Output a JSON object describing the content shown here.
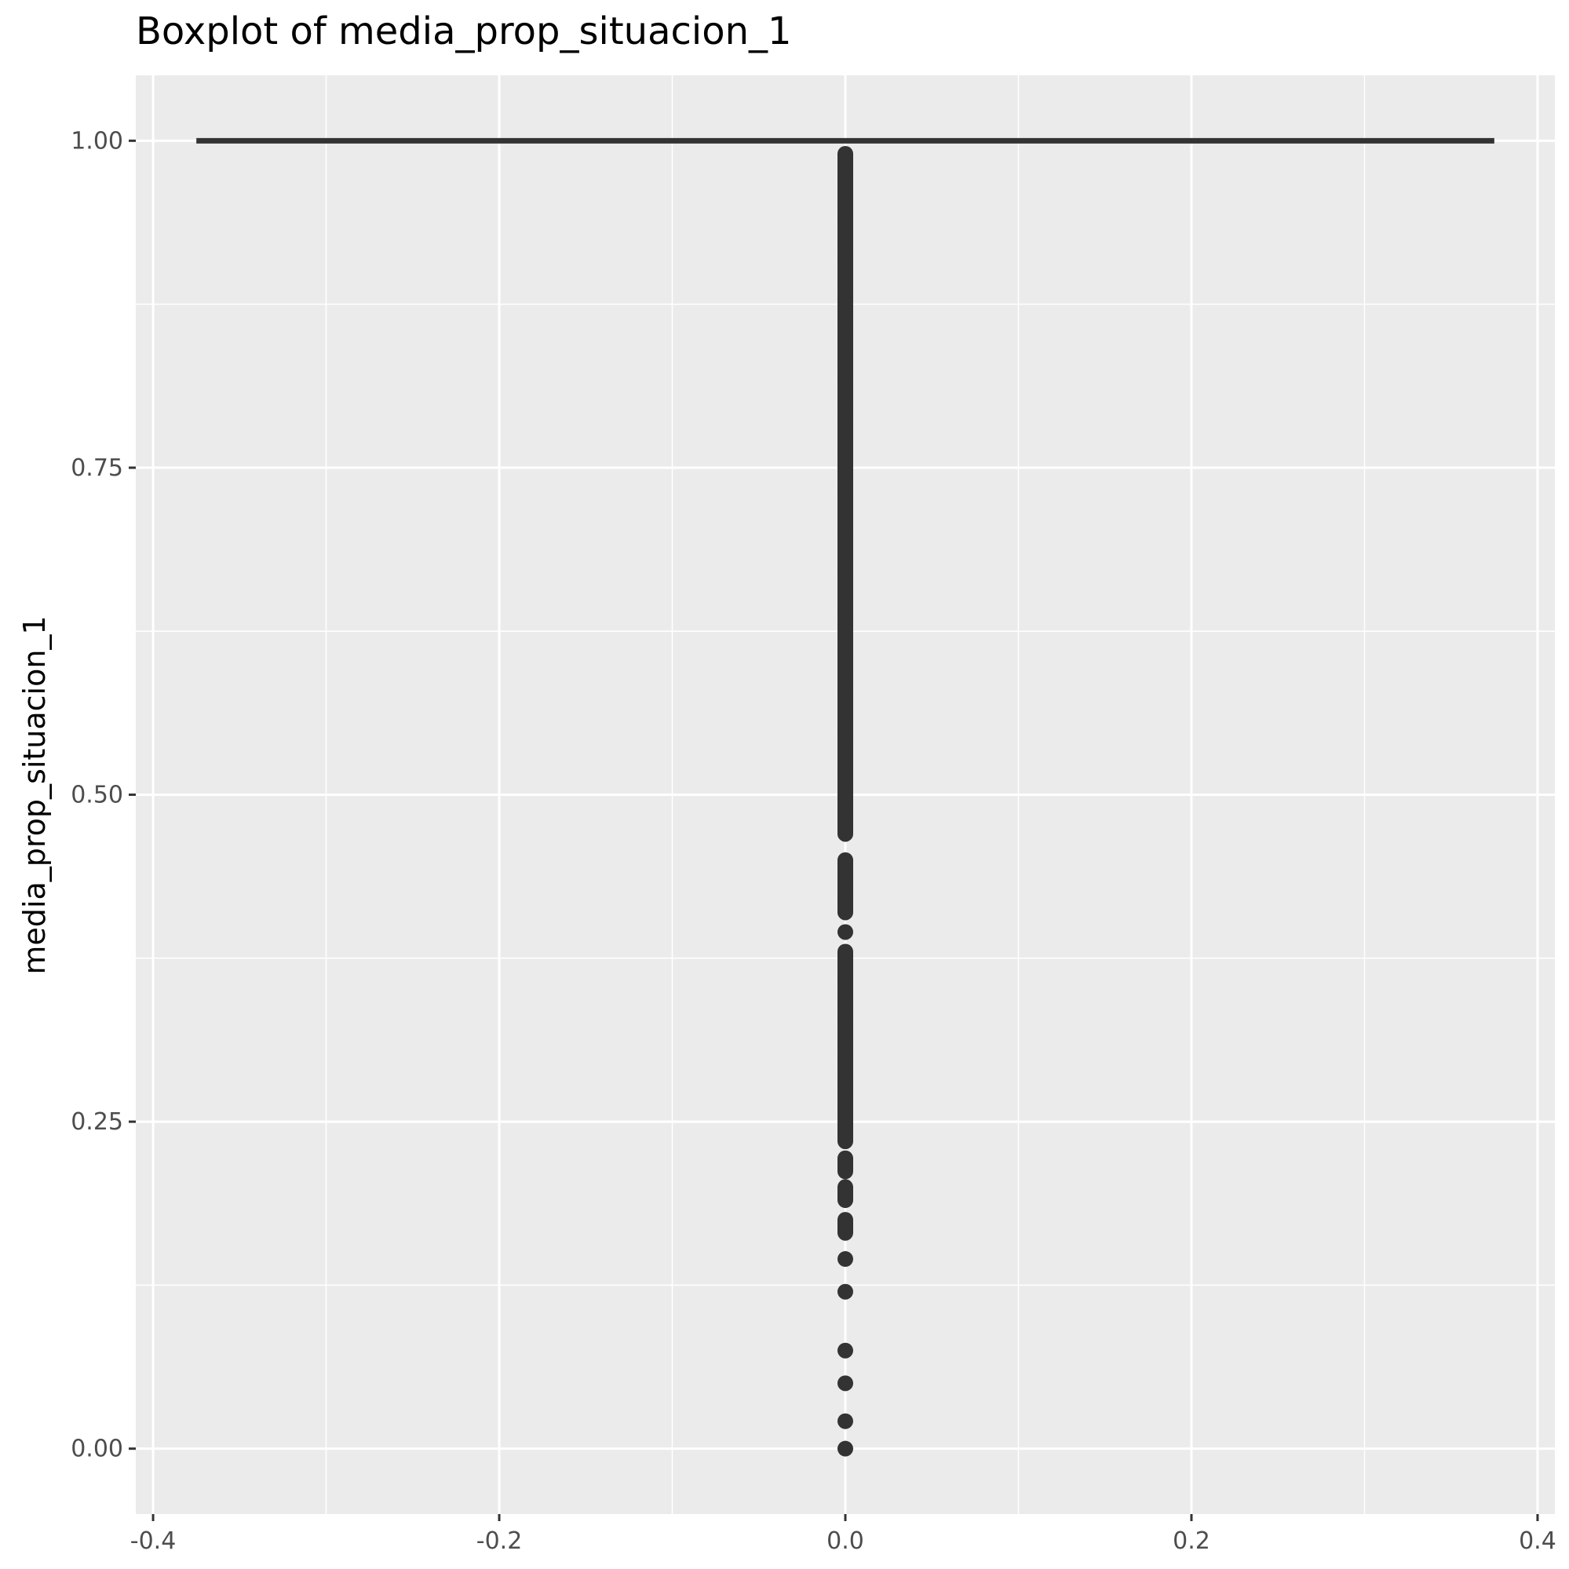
{
  "chart_data": {
    "type": "boxplot",
    "title": "Boxplot of media_prop_situacion_1",
    "xlabel": "",
    "ylabel": "media_prop_situacion_1",
    "xlim": [
      -0.41,
      0.41
    ],
    "ylim": [
      -0.05,
      1.05
    ],
    "x_ticks": [
      {
        "value": -0.4,
        "label": "-0.4"
      },
      {
        "value": -0.2,
        "label": "-0.2"
      },
      {
        "value": 0.0,
        "label": "0.0"
      },
      {
        "value": 0.2,
        "label": "0.2"
      },
      {
        "value": 0.4,
        "label": "0.4"
      }
    ],
    "y_ticks": [
      {
        "value": 0.0,
        "label": "0.00"
      },
      {
        "value": 0.25,
        "label": "0.25"
      },
      {
        "value": 0.5,
        "label": "0.50"
      },
      {
        "value": 0.75,
        "label": "0.75"
      },
      {
        "value": 1.0,
        "label": "1.00"
      }
    ],
    "grid": true,
    "box": {
      "x": 0.0,
      "xmin": -0.375,
      "xmax": 0.375,
      "lower_whisker": 1.0,
      "q1": 1.0,
      "median": 1.0,
      "q3": 1.0,
      "upper_whisker": 1.0
    },
    "outliers": [
      0.0,
      0.021,
      0.05,
      0.075,
      0.12,
      0.145,
      0.165,
      0.17,
      0.175,
      0.19,
      0.195,
      0.2,
      0.212,
      0.222,
      0.235,
      0.24,
      0.25,
      0.26,
      0.27,
      0.28,
      0.29,
      0.3,
      0.31,
      0.32,
      0.33,
      0.34,
      0.35,
      0.36,
      0.37,
      0.38,
      0.395,
      0.41,
      0.42,
      0.43,
      0.44,
      0.45,
      0.47,
      0.48,
      0.49,
      0.5,
      0.51,
      0.52,
      0.53,
      0.54,
      0.55,
      0.56,
      0.57,
      0.58,
      0.59,
      0.6,
      0.61,
      0.62,
      0.63,
      0.64,
      0.65,
      0.66,
      0.67,
      0.68,
      0.69,
      0.7,
      0.71,
      0.72,
      0.73,
      0.74,
      0.75,
      0.76,
      0.77,
      0.78,
      0.79,
      0.8,
      0.81,
      0.82,
      0.83,
      0.84,
      0.85,
      0.86,
      0.87,
      0.88,
      0.89,
      0.9,
      0.91,
      0.92,
      0.93,
      0.94,
      0.95,
      0.96,
      0.97,
      0.98,
      0.99
    ],
    "colors": {
      "panel_background": "#ebebeb",
      "grid": "#ffffff",
      "mark": "#333333",
      "tick_text": "#4d4d4d"
    }
  }
}
